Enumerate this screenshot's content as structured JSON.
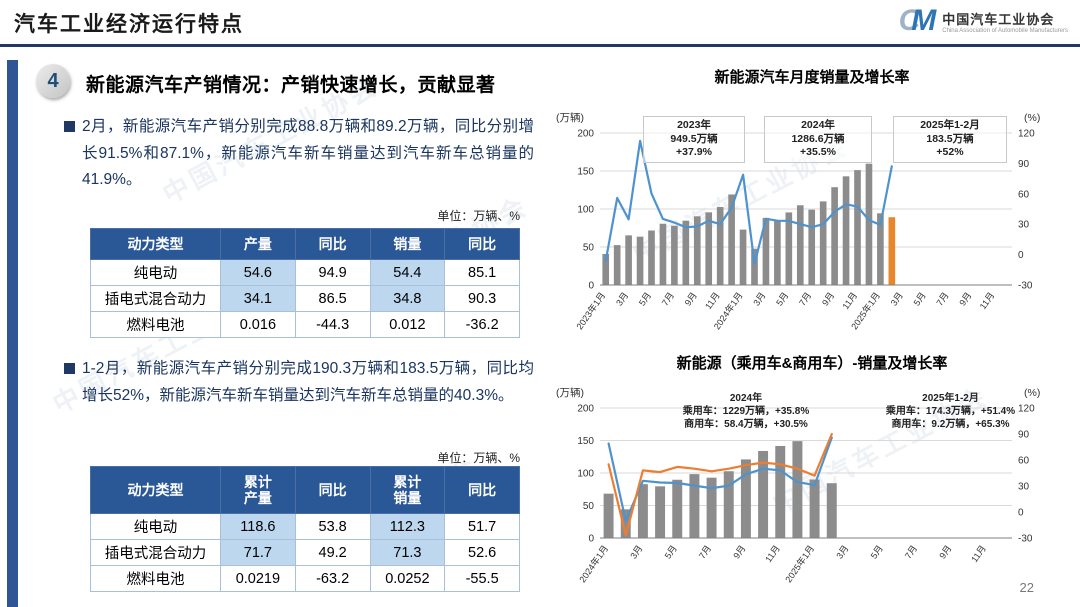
{
  "header": {
    "title": "汽车工业经济运行特点",
    "logo": {
      "mark_c": "C",
      "mark_m": "M",
      "org_cn": "中国汽车工业协会",
      "org_en": "China Association of Automobile Manufacturers"
    }
  },
  "watermark_text": "中国汽车工业协会",
  "section": {
    "badge": "4",
    "heading_main": "新能源汽车产销情况：",
    "heading_sub": "产销快速增长，贡献显著"
  },
  "bullets": [
    {
      "text": "2月，新能源汽车产销分别完成88.8万辆和89.2万辆，同比分别增长91.5%和87.1%，新能源汽车新车销量达到汽车新车总销量的41.9%。"
    },
    {
      "text": "1-2月，新能源汽车产销分别完成190.3万辆和183.5万辆，同比均增长52%，新能源汽车新车销量达到汽车新车总销量的40.3%。"
    }
  ],
  "unit_label": "单位：万辆、%",
  "table1": {
    "headers": [
      "动力类型",
      "产量",
      "同比",
      "销量",
      "同比"
    ],
    "rows": [
      {
        "type": "纯电动",
        "v": [
          "54.6",
          "94.9",
          "54.4",
          "85.1"
        ]
      },
      {
        "type": "插电式混合动力",
        "v": [
          "34.1",
          "86.5",
          "34.8",
          "90.3"
        ]
      },
      {
        "type": "燃料电池",
        "v": [
          "0.016",
          "-44.3",
          "0.012",
          "-36.2"
        ]
      }
    ]
  },
  "table2": {
    "headers": [
      "动力类型",
      "累计产量",
      "同比",
      "累计销量",
      "同比"
    ],
    "rows": [
      {
        "type": "纯电动",
        "v": [
          "118.6",
          "53.8",
          "112.3",
          "51.7"
        ]
      },
      {
        "type": "插电式混合动力",
        "v": [
          "71.7",
          "49.2",
          "71.3",
          "52.6"
        ]
      },
      {
        "type": "燃料电池",
        "v": [
          "0.0219",
          "-63.2",
          "0.0252",
          "-55.5"
        ]
      }
    ]
  },
  "page_number": "22",
  "chart_data": [
    {
      "type": "bar",
      "title": "新能源汽车月度销量及增长率",
      "left_axis": {
        "label": "(万辆)",
        "min": 0,
        "max": 200,
        "ticks": [
          0,
          50,
          100,
          150,
          200
        ]
      },
      "right_axis": {
        "label": "(%)",
        "min": -30,
        "max": 120,
        "ticks": [
          -30,
          0,
          30,
          60,
          90,
          120
        ]
      },
      "slots": 36,
      "x_labels": [
        "2023年1月",
        "3月",
        "5月",
        "7月",
        "9月",
        "11月",
        "2024年1月",
        "3月",
        "5月",
        "7月",
        "9月",
        "11月",
        "2025年1月",
        "3月",
        "5月",
        "7月",
        "9月",
        "11月"
      ],
      "bars": {
        "name": "月度销量",
        "color": "#8C8C8C",
        "highlight_last": true,
        "highlight_color": "#E8862C",
        "values": [
          40.8,
          52.5,
          65.3,
          63.6,
          71.7,
          80.6,
          78.0,
          84.6,
          90.4,
          95.6,
          102.6,
          119.1,
          72.9,
          47.7,
          88.3,
          85.0,
          95.5,
          104.9,
          99.1,
          110.0,
          128.7,
          143.0,
          151.2,
          159.6,
          94.3,
          89.2
        ]
      },
      "lines": [
        {
          "name": "同比增长率",
          "color": "#4E93CE",
          "values": [
            -6.3,
            55.9,
            34.8,
            112.2,
            60.2,
            35.2,
            31.6,
            27.0,
            27.7,
            33.5,
            30.0,
            46.4,
            78.8,
            -9.2,
            35.3,
            33.5,
            33.3,
            30.1,
            27.0,
            30.0,
            42.3,
            49.6,
            47.4,
            34.0,
            29.4,
            87.1
          ]
        }
      ],
      "annotations": [
        {
          "lines": [
            "2023年",
            "949.5万辆",
            "+37.9%"
          ]
        },
        {
          "lines": [
            "2024年",
            "1286.6万辆",
            "+35.5%"
          ]
        },
        {
          "lines": [
            "2025年1-2月",
            "183.5万辆",
            "+52%"
          ]
        }
      ]
    },
    {
      "type": "bar",
      "title": "新能源（乘用车&商用车）-销量及增长率",
      "left_axis": {
        "label": "(万辆)",
        "min": 0,
        "max": 200,
        "ticks": [
          0,
          50,
          100,
          150,
          200
        ]
      },
      "right_axis": {
        "label": "(%)",
        "min": -30,
        "max": 120,
        "ticks": [
          -30,
          0,
          30,
          60,
          90,
          120
        ]
      },
      "slots": 24,
      "x_labels": [
        "2024年1月",
        "3月",
        "5月",
        "7月",
        "9月",
        "11月",
        "2025年1月",
        "3月",
        "5月",
        "7月",
        "9月",
        "11月"
      ],
      "bars": {
        "name": "乘用车月度销量",
        "color": "#8C8C8C",
        "highlight_last": false,
        "highlight_color": "#E8862C",
        "values": [
          68.2,
          44.1,
          82.8,
          79.5,
          89.6,
          98.3,
          92.8,
          102.7,
          120.9,
          133.9,
          141.6,
          149.0,
          90.0,
          84.3
        ]
      },
      "lines": [
        {
          "name": "乘用车同比",
          "color": "#4E93CE",
          "values": [
            79.0,
            -10.5,
            36.0,
            34.0,
            33.5,
            30.5,
            27.5,
            30.5,
            43.5,
            50.0,
            48.0,
            34.5,
            31.0,
            86.0
          ]
        },
        {
          "name": "商用车同比",
          "color": "#ED7D31",
          "values": [
            55.0,
            -27.0,
            48.0,
            46.0,
            52.0,
            50.0,
            47.0,
            50.0,
            54.0,
            57.0,
            55.0,
            50.0,
            42.0,
            90.0
          ]
        }
      ],
      "annotations": [
        {
          "lines": [
            "2024年",
            "乘用车：1229万辆，+35.8%",
            "商用车：58.4万辆，+30.5%"
          ]
        },
        {
          "lines": [
            "2025年1-2月",
            "乘用车：174.3万辆，+51.4%",
            "商用车：9.2万辆，+65.3%"
          ]
        }
      ]
    }
  ]
}
